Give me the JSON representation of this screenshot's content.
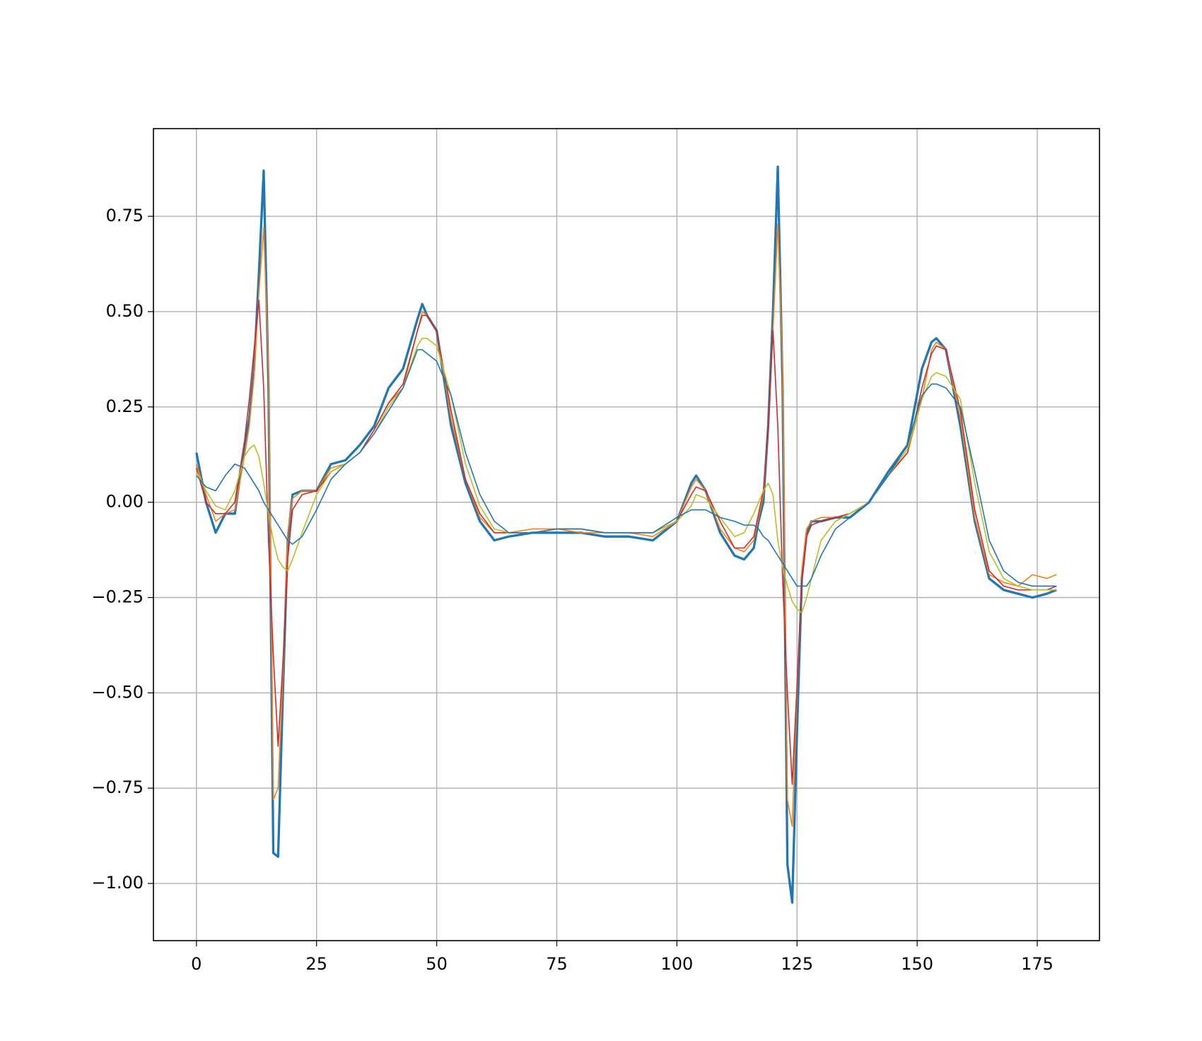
{
  "chart_data": {
    "type": "line",
    "x": [
      0,
      2,
      4,
      6,
      8,
      10,
      11,
      12,
      13,
      14,
      15,
      16,
      17,
      18,
      19,
      20,
      22,
      25,
      28,
      31,
      34,
      37,
      40,
      43,
      46,
      47,
      48,
      50,
      53,
      56,
      59,
      62,
      65,
      70,
      75,
      80,
      85,
      90,
      95,
      100,
      103,
      104,
      106,
      109,
      112,
      114,
      116,
      117,
      118,
      119,
      120,
      121,
      122,
      123,
      124,
      125,
      126,
      127,
      128,
      130,
      133,
      136,
      140,
      144,
      148,
      151,
      153,
      154,
      156,
      159,
      162,
      165,
      168,
      171,
      174,
      177,
      179
    ],
    "series": [
      {
        "color": "#1f77b4",
        "values": [
          0.13,
          0.0,
          -0.08,
          -0.03,
          -0.03,
          0.15,
          0.22,
          0.35,
          0.6,
          0.87,
          0.3,
          -0.92,
          -0.93,
          -0.5,
          -0.1,
          0.02,
          0.03,
          0.03,
          0.1,
          0.11,
          0.15,
          0.2,
          0.3,
          0.35,
          0.48,
          0.52,
          0.49,
          0.45,
          0.2,
          0.05,
          -0.05,
          -0.1,
          -0.09,
          -0.08,
          -0.08,
          -0.08,
          -0.09,
          -0.09,
          -0.1,
          -0.05,
          0.05,
          0.07,
          0.03,
          -0.08,
          -0.14,
          -0.15,
          -0.12,
          -0.05,
          0.0,
          0.2,
          0.5,
          0.88,
          0.3,
          -0.95,
          -1.05,
          -0.6,
          -0.2,
          -0.08,
          -0.05,
          -0.05,
          -0.04,
          -0.04,
          0.0,
          0.08,
          0.15,
          0.35,
          0.42,
          0.43,
          0.4,
          0.2,
          -0.05,
          -0.2,
          -0.23,
          -0.24,
          -0.25,
          -0.24,
          -0.23
        ]
      },
      {
        "color": "#ff7f0e",
        "values": [
          0.1,
          0.02,
          -0.05,
          -0.03,
          -0.02,
          0.12,
          0.2,
          0.33,
          0.55,
          0.72,
          0.35,
          -0.78,
          -0.75,
          -0.45,
          -0.08,
          0.01,
          0.03,
          0.03,
          0.09,
          0.1,
          0.13,
          0.19,
          0.26,
          0.3,
          0.45,
          0.5,
          0.49,
          0.45,
          0.22,
          0.06,
          -0.04,
          -0.08,
          -0.08,
          -0.07,
          -0.07,
          -0.08,
          -0.08,
          -0.08,
          -0.09,
          -0.05,
          0.04,
          0.06,
          0.03,
          -0.07,
          -0.12,
          -0.13,
          -0.1,
          -0.04,
          0.02,
          0.2,
          0.45,
          0.73,
          0.35,
          -0.78,
          -0.85,
          -0.5,
          -0.18,
          -0.07,
          -0.05,
          -0.04,
          -0.04,
          -0.03,
          0.0,
          0.07,
          0.13,
          0.27,
          0.4,
          0.42,
          0.4,
          0.22,
          -0.04,
          -0.19,
          -0.21,
          -0.22,
          -0.19,
          -0.2,
          -0.19
        ]
      },
      {
        "color": "#d62728",
        "values": [
          0.09,
          0.0,
          -0.03,
          -0.03,
          0.0,
          0.16,
          0.27,
          0.4,
          0.53,
          0.3,
          -0.1,
          -0.4,
          -0.64,
          -0.42,
          -0.15,
          -0.02,
          0.02,
          0.03,
          0.08,
          0.1,
          0.13,
          0.19,
          0.26,
          0.31,
          0.45,
          0.49,
          0.49,
          0.45,
          0.24,
          0.06,
          -0.03,
          -0.08,
          -0.08,
          -0.08,
          -0.07,
          -0.07,
          -0.08,
          -0.08,
          -0.08,
          -0.05,
          0.02,
          0.04,
          0.03,
          -0.05,
          -0.12,
          -0.12,
          -0.09,
          -0.03,
          0.03,
          0.2,
          0.45,
          0.2,
          -0.2,
          -0.5,
          -0.74,
          -0.48,
          -0.2,
          -0.09,
          -0.06,
          -0.05,
          -0.04,
          -0.03,
          0.0,
          0.07,
          0.13,
          0.3,
          0.39,
          0.41,
          0.4,
          0.24,
          -0.02,
          -0.18,
          -0.22,
          -0.23,
          -0.23,
          -0.23,
          -0.22
        ]
      },
      {
        "color": "#bcbd22",
        "values": [
          0.08,
          0.03,
          -0.01,
          -0.02,
          0.03,
          0.12,
          0.14,
          0.15,
          0.12,
          0.05,
          -0.03,
          -0.1,
          -0.15,
          -0.17,
          -0.18,
          -0.15,
          -0.08,
          0.02,
          0.08,
          0.1,
          0.13,
          0.18,
          0.25,
          0.3,
          0.41,
          0.43,
          0.43,
          0.41,
          0.28,
          0.1,
          -0.01,
          -0.07,
          -0.08,
          -0.08,
          -0.07,
          -0.07,
          -0.08,
          -0.08,
          -0.08,
          -0.05,
          -0.01,
          0.02,
          0.01,
          -0.04,
          -0.09,
          -0.08,
          -0.03,
          0.0,
          0.03,
          0.05,
          0.02,
          -0.1,
          -0.17,
          -0.22,
          -0.26,
          -0.28,
          -0.29,
          -0.25,
          -0.2,
          -0.1,
          -0.05,
          -0.03,
          0.0,
          0.07,
          0.14,
          0.27,
          0.33,
          0.34,
          0.33,
          0.27,
          0.05,
          -0.13,
          -0.2,
          -0.22,
          -0.23,
          -0.23,
          -0.23
        ]
      },
      {
        "color": "#1f77b4",
        "values": [
          0.07,
          0.04,
          0.03,
          0.07,
          0.1,
          0.09,
          0.07,
          0.05,
          0.03,
          0.0,
          -0.02,
          -0.04,
          -0.06,
          -0.08,
          -0.1,
          -0.11,
          -0.09,
          -0.02,
          0.06,
          0.1,
          0.13,
          0.18,
          0.24,
          0.3,
          0.4,
          0.4,
          0.39,
          0.37,
          0.28,
          0.13,
          0.02,
          -0.05,
          -0.08,
          -0.08,
          -0.07,
          -0.07,
          -0.08,
          -0.08,
          -0.08,
          -0.04,
          -0.02,
          -0.02,
          -0.02,
          -0.04,
          -0.05,
          -0.06,
          -0.06,
          -0.07,
          -0.09,
          -0.1,
          -0.12,
          -0.14,
          -0.16,
          -0.18,
          -0.2,
          -0.22,
          -0.22,
          -0.22,
          -0.2,
          -0.14,
          -0.07,
          -0.04,
          0.0,
          0.07,
          0.15,
          0.28,
          0.31,
          0.31,
          0.3,
          0.25,
          0.08,
          -0.1,
          -0.18,
          -0.21,
          -0.22,
          -0.22,
          -0.22
        ]
      }
    ],
    "xlim": [
      -8.95,
      187.95
    ],
    "xticks": [
      0,
      25,
      50,
      75,
      100,
      125,
      150,
      175
    ],
    "ylim": [
      -1.15,
      0.98
    ],
    "yticks": [
      {
        "value": -1.0,
        "label": "−1.00"
      },
      {
        "value": -0.75,
        "label": "−0.75"
      },
      {
        "value": -0.5,
        "label": "−0.50"
      },
      {
        "value": -0.25,
        "label": "−0.25"
      },
      {
        "value": 0,
        "label": "0.00"
      },
      0.25,
      {
        "value": 0.5,
        "label": "0.50"
      },
      0.75
    ],
    "grid": true
  }
}
